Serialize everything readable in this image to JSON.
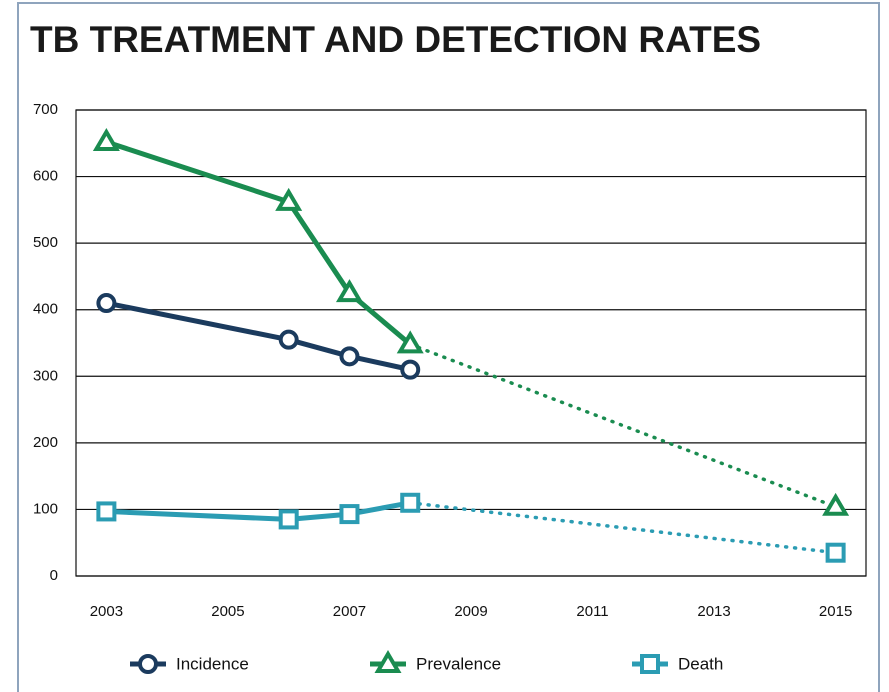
{
  "chart_data": {
    "type": "line",
    "title": "TB TREATMENT AND DETECTION RATES",
    "x": [
      2003,
      2006,
      2007,
      2008,
      2015
    ],
    "projection_from": 2008,
    "series": [
      {
        "name": "Incidence",
        "color": "#1b3b5e",
        "marker": "circle",
        "values": [
          410,
          355,
          330,
          310,
          null
        ]
      },
      {
        "name": "Prevalence",
        "color": "#1a8c50",
        "marker": "triangle",
        "values": [
          652,
          562,
          425,
          348,
          104
        ]
      },
      {
        "name": "Death",
        "color": "#2b9cb3",
        "marker": "square",
        "values": [
          97,
          85,
          93,
          110,
          35
        ]
      }
    ],
    "xlim": [
      2002.5,
      2015.5
    ],
    "xticks": [
      2003,
      2005,
      2007,
      2009,
      2011,
      2013,
      2015
    ],
    "ylim": [
      0,
      700
    ],
    "yticks": [
      0,
      100,
      200,
      300,
      400,
      500,
      600,
      700
    ],
    "grid": true,
    "legend": "bottom"
  }
}
